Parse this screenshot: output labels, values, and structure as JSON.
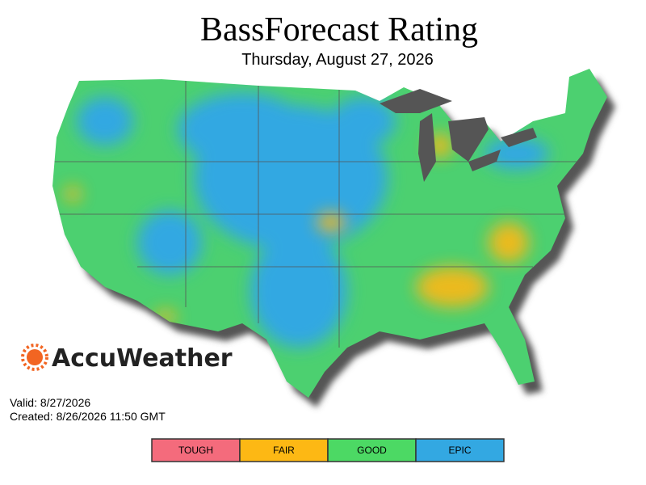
{
  "header": {
    "title": "BassForecast Rating",
    "subtitle": "Thursday, August 27, 2026"
  },
  "brand": "AccuWeather",
  "info": {
    "valid": "Valid: 8/27/2026",
    "created": "Created: 8/26/2026 11:50 GMT"
  },
  "legend": [
    {
      "label": "TOUGH",
      "color": "#f46b7c"
    },
    {
      "label": "FAIR",
      "color": "#fdb814"
    },
    {
      "label": "GOOD",
      "color": "#4cd964"
    },
    {
      "label": "EPIC",
      "color": "#33a8e2"
    }
  ]
}
